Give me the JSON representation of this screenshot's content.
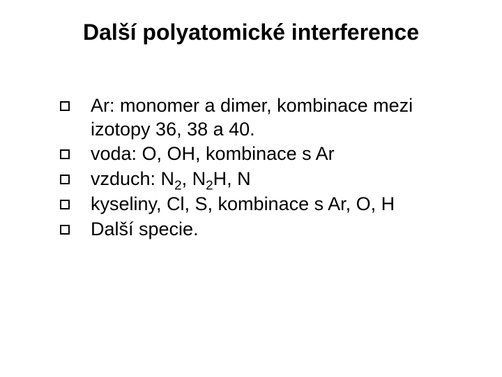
{
  "slide": {
    "title": "Další polyatomické interference",
    "title_fontsize": 32,
    "title_font": "Arial",
    "body_font": "Comic Sans MS",
    "body_fontsize": 27,
    "text_color": "#000000",
    "background_color": "#ffffff",
    "bullet_marker": "hollow-square",
    "bullet_border_color": "#000000",
    "bullets": [
      {
        "text": "Ar: monomer a dimer, kombinace mezi izotopy 36, 38 a 40."
      },
      {
        "text": "voda: O, OH, kombinace s Ar"
      },
      {
        "text_parts": [
          "vzduch: N",
          {
            "sub": "2"
          },
          ", N",
          {
            "sub": "2"
          },
          "H, N"
        ],
        "text": "vzduch: N2, N2H, N"
      },
      {
        "text": "kyseliny, Cl, S, kombinace s Ar, O, H"
      },
      {
        "text": "Další specie."
      }
    ]
  }
}
